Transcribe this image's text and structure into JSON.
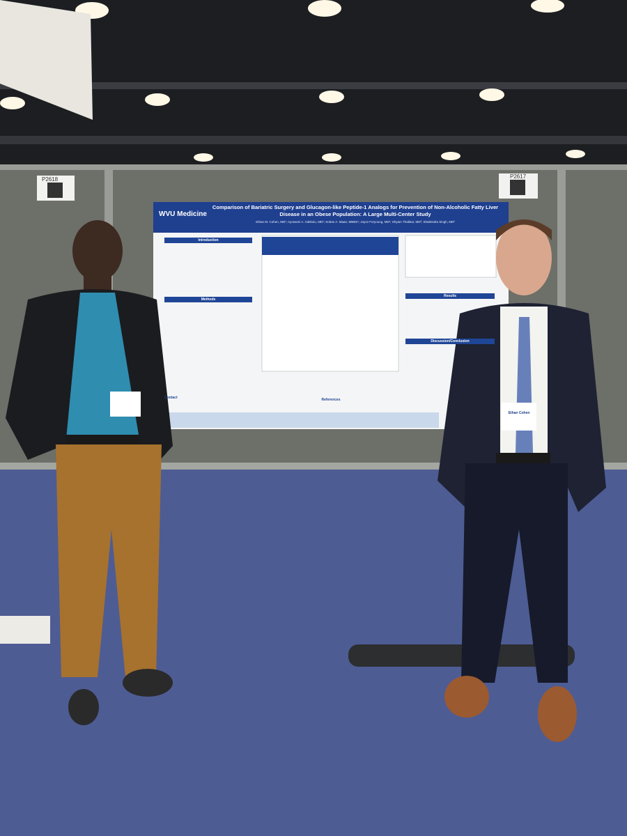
{
  "booth_numbers": [
    "P2618",
    "P2617"
  ],
  "poster": {
    "logo": "WVU Medicine",
    "title": "Comparison of Bariatric Surgery and Glucagon-like Peptide-1 Analogs for Prevention of Non-Alcoholic Fatty Liver Disease in an Obese Population: A Large Multi-Center Study",
    "authors": "Ethan M. Cohen, MD¹; Ayowumi A. Adekolu, MD¹; Soban A. Maan, MBBS¹; Joyce Foryoung, MD¹; Shyam Thakkar, MD²; Shailendra Singh, MD²",
    "sections": [
      "Introduction",
      "Methods",
      "Contact",
      "References",
      "Results",
      "Discussion/Conclusion"
    ]
  },
  "badges": [
    "Ethan Cohen"
  ]
}
